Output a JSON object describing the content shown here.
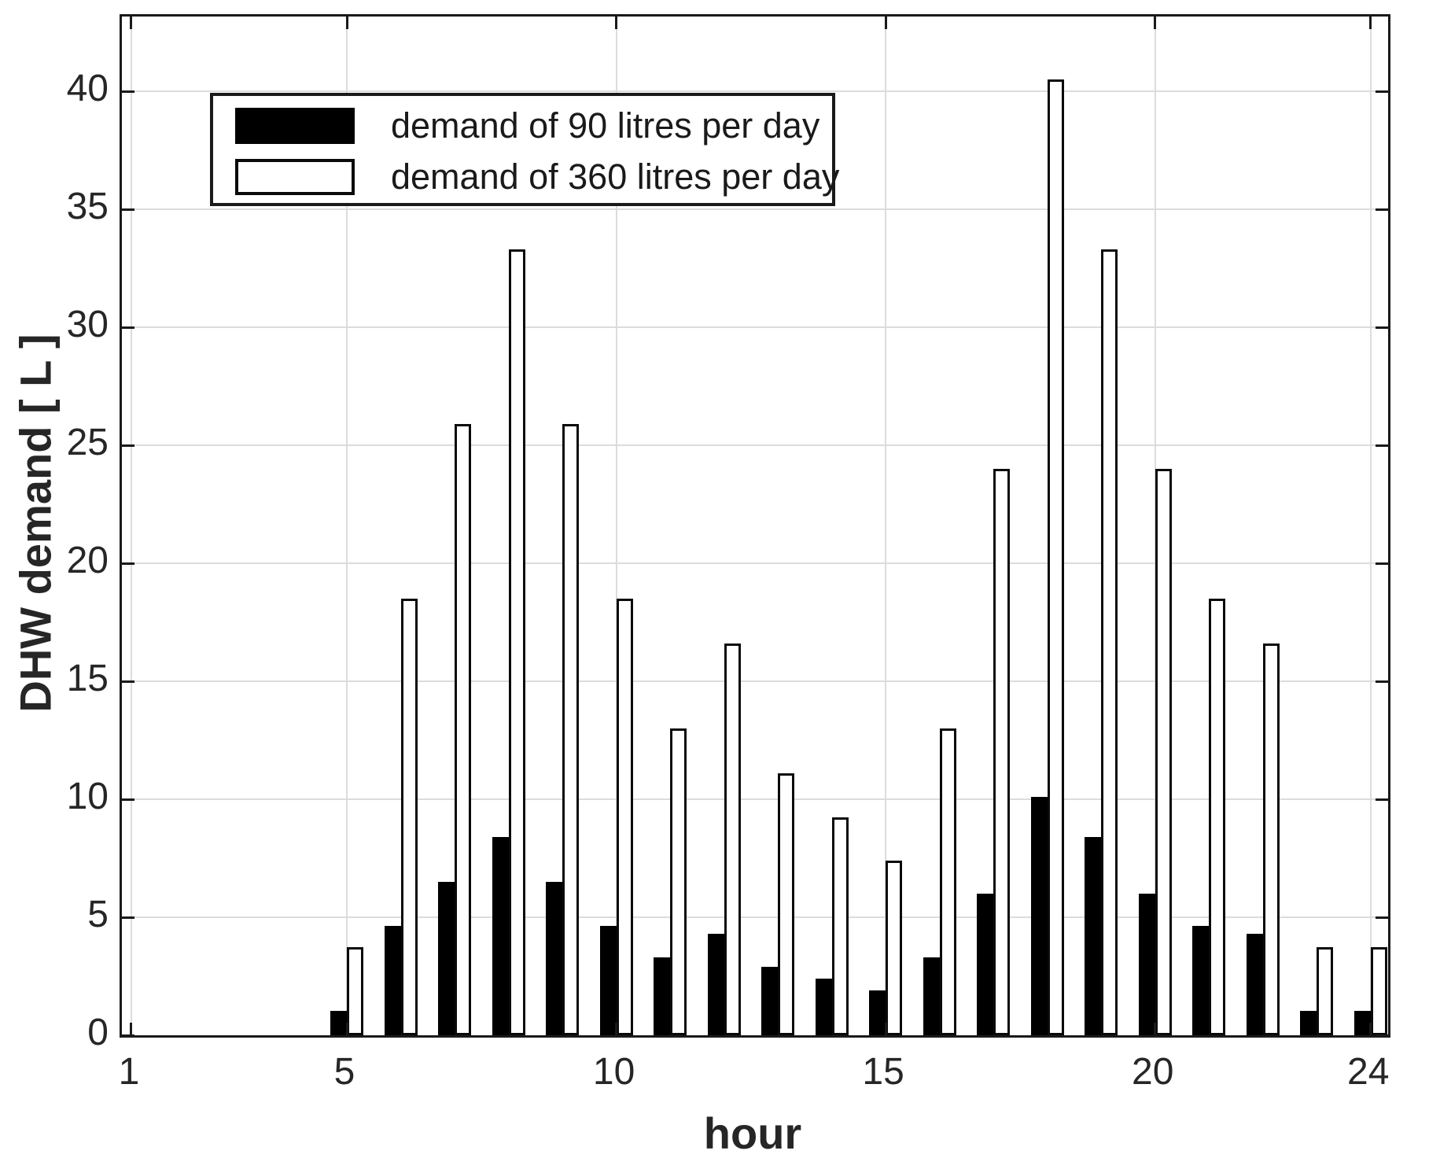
{
  "figure": {
    "background": "#ffffff",
    "frame_color": "#1a1a1a",
    "grid_color": "#dcdcdc",
    "tick_label_color": "#262626",
    "series_colors": {
      "bars_90": "#000000",
      "bars_360": "#ffffff"
    }
  },
  "chart_data": {
    "type": "bar",
    "title": "",
    "xlabel": "hour",
    "ylabel": "DHW demand [ L ]",
    "x": [
      1,
      2,
      3,
      4,
      5,
      6,
      7,
      8,
      9,
      10,
      11,
      12,
      13,
      14,
      15,
      16,
      17,
      18,
      19,
      20,
      21,
      22,
      23,
      24
    ],
    "series": [
      {
        "name": "demand of 90 litres per day",
        "fill": "#000000",
        "values": [
          0,
          0,
          0,
          0,
          1.05,
          4.65,
          6.5,
          8.4,
          6.5,
          4.65,
          3.3,
          4.3,
          2.9,
          2.4,
          1.9,
          3.3,
          6,
          10.1,
          8.4,
          6,
          4.65,
          4.3,
          1.05,
          1.05
        ]
      },
      {
        "name": "demand of 360 litres per day",
        "fill": "#ffffff",
        "values": [
          0,
          0,
          0,
          0,
          3.75,
          18.5,
          25.9,
          33.3,
          25.9,
          18.5,
          13,
          16.6,
          11.1,
          9.25,
          7.4,
          13,
          24,
          40.5,
          33.3,
          24,
          18.5,
          16.6,
          3.75,
          3.75
        ]
      }
    ],
    "xticks": [
      1,
      5,
      10,
      15,
      20,
      24
    ],
    "yticks": [
      0,
      5,
      10,
      15,
      20,
      25,
      30,
      35,
      40
    ],
    "xlim": [
      0.825,
      24.325
    ],
    "ylim": [
      0,
      43.17
    ],
    "grid": true,
    "legend_position": "top-left"
  }
}
